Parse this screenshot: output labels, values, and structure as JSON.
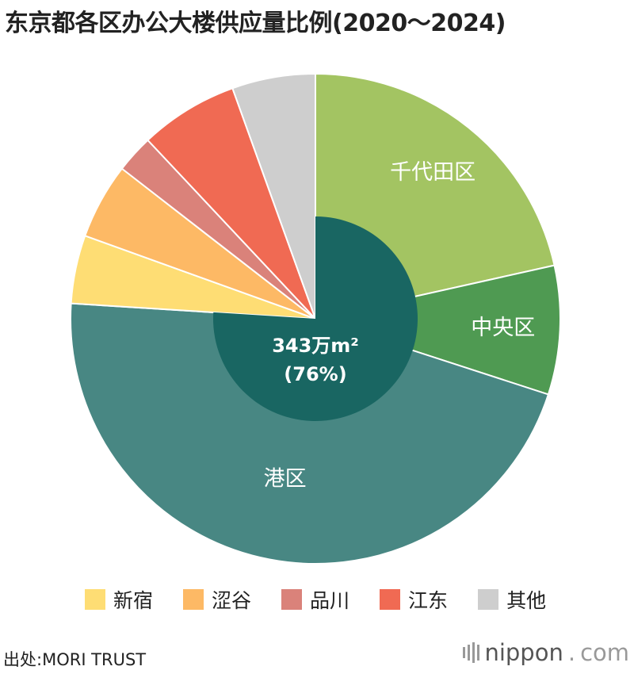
{
  "title": "东京都各区办公大楼供应量比例(2020〜2024)",
  "chart_data": {
    "type": "pie",
    "slices": [
      {
        "name": "千代田区",
        "value": 21.5,
        "color": "#a3c462",
        "label": "千代田区"
      },
      {
        "name": "中央区",
        "value": 8.5,
        "color": "#4f9a52",
        "label": "中央区"
      },
      {
        "name": "港区",
        "value": 46.0,
        "color": "#488783",
        "label": "港区"
      },
      {
        "name": "新宿",
        "value": 4.5,
        "color": "#fedd74",
        "label": ""
      },
      {
        "name": "涩谷",
        "value": 5.0,
        "color": "#fdb965",
        "label": ""
      },
      {
        "name": "品川",
        "value": 2.5,
        "color": "#da827a",
        "label": ""
      },
      {
        "name": "江东",
        "value": 6.5,
        "color": "#f06a53",
        "label": ""
      },
      {
        "name": "其他",
        "value": 5.5,
        "color": "#cecece",
        "label": ""
      }
    ],
    "inner_value": 76,
    "center_label": {
      "line1": "343万m²",
      "line2": "(76%)"
    },
    "inner_color": "#196662"
  },
  "legend": [
    {
      "name": "新宿",
      "color": "#fedd74"
    },
    {
      "name": "涩谷",
      "color": "#fdb965"
    },
    {
      "name": "品川",
      "color": "#da827a"
    },
    {
      "name": "江东",
      "color": "#f06a53"
    },
    {
      "name": "其他",
      "color": "#cecece"
    }
  ],
  "source": "出处:MORI TRUST",
  "brand": {
    "name": "nippon",
    "suffix": "com"
  }
}
